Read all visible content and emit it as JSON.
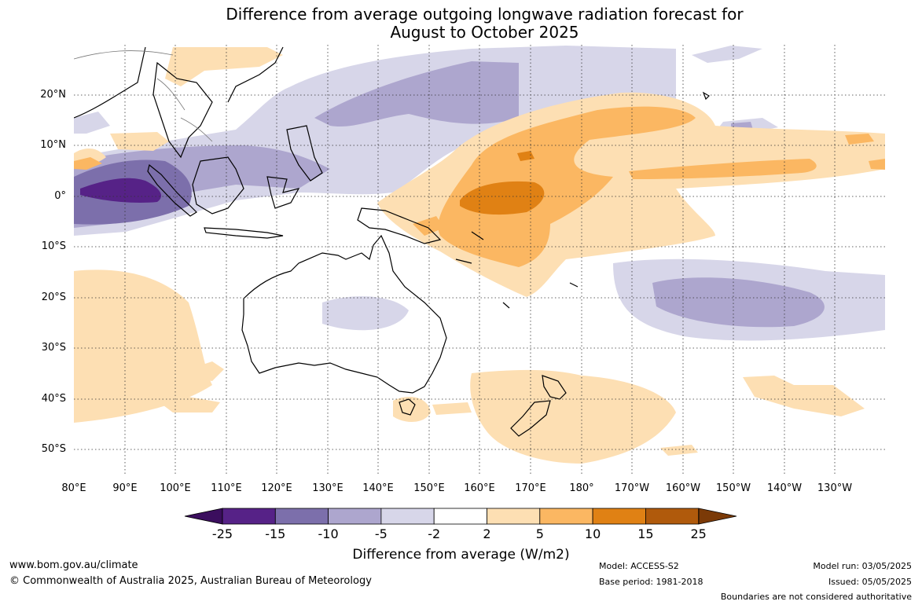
{
  "title": {
    "line1": "Difference from average outgoing longwave radiation forecast for",
    "line2": "August to October 2025"
  },
  "map": {
    "lat_labels": [
      "20°N",
      "10°N",
      "0°",
      "10°S",
      "20°S",
      "30°S",
      "40°S",
      "50°S"
    ],
    "lon_labels": [
      "80°E",
      "90°E",
      "100°E",
      "110°E",
      "120°E",
      "130°E",
      "140°E",
      "150°E",
      "160°E",
      "170°E",
      "180°",
      "170°W",
      "160°W",
      "150°W",
      "140°W",
      "130°W"
    ]
  },
  "colorbar": {
    "ticks": [
      "-25",
      "-15",
      "-10",
      "-5",
      "-2",
      "2",
      "5",
      "10",
      "15",
      "25"
    ],
    "colors": [
      "#562287",
      "#7c6fab",
      "#ada6ce",
      "#d7d6e9",
      "#ffffff",
      "#fddfb3",
      "#fbb762",
      "#e08114",
      "#b05a0c"
    ],
    "extend_low_color": "#3b0e5e",
    "extend_high_color": "#7b3a07",
    "label": "Difference from average (W/m2)"
  },
  "footer": {
    "website": "www.bom.gov.au/climate",
    "copyright": "© Commonwealth of Australia 2025, Australian Bureau of Meteorology",
    "model": "Model: ACCESS-S2",
    "base_period": "Base period: 1981-2018",
    "model_run": "Model run: 03/05/2025",
    "issued": "Issued: 05/05/2025",
    "disclaimer": "Boundaries are not considered authoritative"
  }
}
